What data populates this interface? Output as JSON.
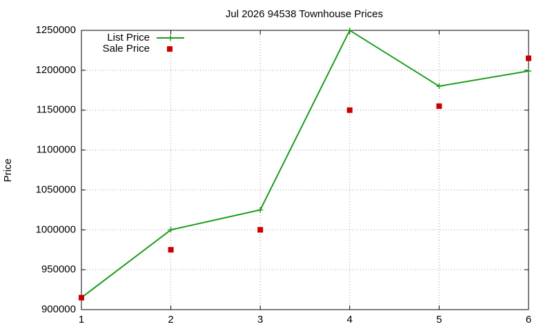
{
  "chart_data": {
    "type": "line",
    "title": "Jul 2026 94538 Townhouse Prices",
    "y_label": "Price",
    "x": [
      1,
      2,
      3,
      4,
      5,
      6
    ],
    "series": [
      {
        "name": "List Price",
        "color": "#1a9c1a",
        "style": "line",
        "values": [
          915000,
          1000000,
          1025000,
          1250000,
          1180000,
          1199000
        ]
      },
      {
        "name": "Sale Price",
        "color": "#c80000",
        "style": "points",
        "values": [
          915000,
          975000,
          1000000,
          1150000,
          1155000,
          1215000
        ]
      }
    ],
    "xlim": [
      1,
      6
    ],
    "xticks": [
      1,
      2,
      3,
      4,
      5,
      6
    ],
    "ylim": [
      900000,
      1250000
    ],
    "yticks": [
      900000,
      950000,
      1000000,
      1050000,
      1100000,
      1150000,
      1200000,
      1250000
    ],
    "grid": true,
    "legend": "top-left"
  }
}
